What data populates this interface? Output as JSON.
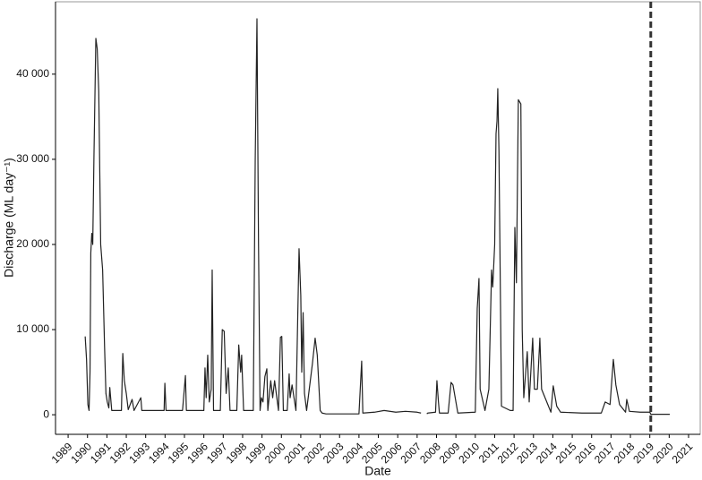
{
  "chart_data": {
    "type": "line",
    "x_label": "Date",
    "y_label": "Discharge (ML day⁻¹)",
    "xlim": [
      1988.35,
      2021.6
    ],
    "ylim": [
      -2300,
      48500
    ],
    "xticks": [
      1989,
      1990,
      1991,
      1992,
      1993,
      1994,
      1995,
      1996,
      1997,
      1998,
      1999,
      2000,
      2001,
      2002,
      2003,
      2004,
      2005,
      2006,
      2007,
      2008,
      2009,
      2010,
      2011,
      2012,
      2013,
      2014,
      2015,
      2016,
      2017,
      2018,
      2019,
      2020,
      2021
    ],
    "yticks": [
      0,
      {
        "value": 10000,
        "label": "10 000"
      },
      {
        "value": 20000,
        "label": "20 000"
      },
      {
        "value": 30000,
        "label": "30 000"
      },
      {
        "value": 40000,
        "label": "40 000"
      }
    ],
    "vline": 2019.05,
    "vline_color": "#333333",
    "series": [
      {
        "color": "#222222",
        "x": [
          1989.88,
          1989.95,
          1990.02,
          1990.08,
          1990.13,
          1990.17,
          1990.22,
          1990.27,
          1990.33,
          1990.43,
          1990.5,
          1990.58,
          1990.68,
          1990.78,
          1990.88,
          1990.95,
          1991.02,
          1991.1,
          1991.15,
          1991.25,
          1991.5,
          1991.75,
          1991.82,
          1991.9,
          1992.0,
          1992.1,
          1992.3,
          1992.4,
          1992.75,
          1992.8,
          1993.5,
          1993.95,
          1993.99,
          1994.05,
          1994.9,
          1995.05,
          1995.1,
          1996.0,
          1996.06,
          1996.12,
          1996.2,
          1996.28,
          1996.38,
          1996.43,
          1996.5,
          1996.85,
          1996.95,
          1997.05,
          1997.15,
          1997.26,
          1997.35,
          1997.7,
          1997.8,
          1997.9,
          1997.95,
          1998.05,
          1998.55,
          1998.65,
          1998.74,
          1998.82,
          1998.9,
          1998.97,
          1999.05,
          1999.15,
          1999.25,
          1999.3,
          1999.45,
          1999.55,
          1999.65,
          1999.85,
          1999.95,
          2000.02,
          2000.1,
          2000.3,
          2000.4,
          2000.45,
          2000.55,
          2000.75,
          2000.91,
          2001.0,
          2001.05,
          2001.12,
          2001.19,
          2001.3,
          2001.6,
          2001.74,
          2001.85,
          2002.0,
          2002.1,
          2002.3,
          2003.0,
          2004.0,
          2004.14,
          2004.2,
          2004.8,
          2005.3,
          2005.9,
          2006.4,
          2007.0,
          2007.2,
          2007.35,
          2007.5,
          2007.55,
          2007.95,
          2008.02,
          2008.1,
          2008.15,
          2008.6,
          2008.75,
          2008.85,
          2009.1,
          2010.0,
          2010.1,
          2010.19,
          2010.25,
          2010.5,
          2010.7,
          2010.84,
          2010.9,
          2011.0,
          2011.07,
          2011.12,
          2011.16,
          2011.22,
          2011.3,
          2011.35,
          2011.8,
          2011.95,
          2012.04,
          2012.12,
          2012.22,
          2012.35,
          2012.42,
          2012.5,
          2012.68,
          2012.78,
          2012.96,
          2013.05,
          2013.2,
          2013.33,
          2013.42,
          2013.9,
          2014.02,
          2014.2,
          2014.4,
          2015.5,
          2016.5,
          2016.7,
          2016.95,
          2017.12,
          2017.25,
          2017.44,
          2017.75,
          2017.81,
          2017.95,
          2018.5,
          2019.0,
          2019.05,
          2020.03
        ],
        "values": [
          9200,
          6500,
          1200,
          500,
          5000,
          19000,
          21300,
          20000,
          30000,
          44200,
          43000,
          38000,
          20000,
          17000,
          8000,
          2500,
          1500,
          800,
          3200,
          500,
          500,
          500,
          7200,
          4000,
          2500,
          600,
          1800,
          500,
          2000,
          500,
          500,
          500,
          3700,
          500,
          500,
          4600,
          500,
          500,
          5500,
          2000,
          7000,
          1500,
          3000,
          17000,
          500,
          500,
          10000,
          9800,
          2500,
          5500,
          500,
          500,
          8200,
          5000,
          7000,
          500,
          500,
          30000,
          46500,
          20000,
          500,
          2000,
          1500,
          4500,
          5400,
          500,
          4000,
          2000,
          4000,
          500,
          9100,
          9200,
          500,
          500,
          4800,
          2000,
          3500,
          500,
          19500,
          14000,
          5000,
          12000,
          2500,
          500,
          6000,
          9000,
          7000,
          500,
          200,
          100,
          100,
          100,
          6300,
          200,
          300,
          500,
          300,
          400,
          300,
          200,
          null,
          100,
          200,
          300,
          4000,
          1500,
          200,
          200,
          3800,
          3500,
          200,
          300,
          12500,
          16000,
          3000,
          500,
          3000,
          17000,
          15000,
          20000,
          33000,
          34500,
          38300,
          31000,
          13000,
          1000,
          500,
          500,
          22000,
          15500,
          37000,
          36500,
          10000,
          2000,
          7400,
          1500,
          9000,
          3000,
          3000,
          9000,
          3000,
          300,
          3400,
          1000,
          300,
          200,
          200,
          1500,
          1200,
          6500,
          3500,
          1200,
          300,
          1800,
          400,
          300,
          300,
          50,
          50
        ]
      }
    ]
  }
}
